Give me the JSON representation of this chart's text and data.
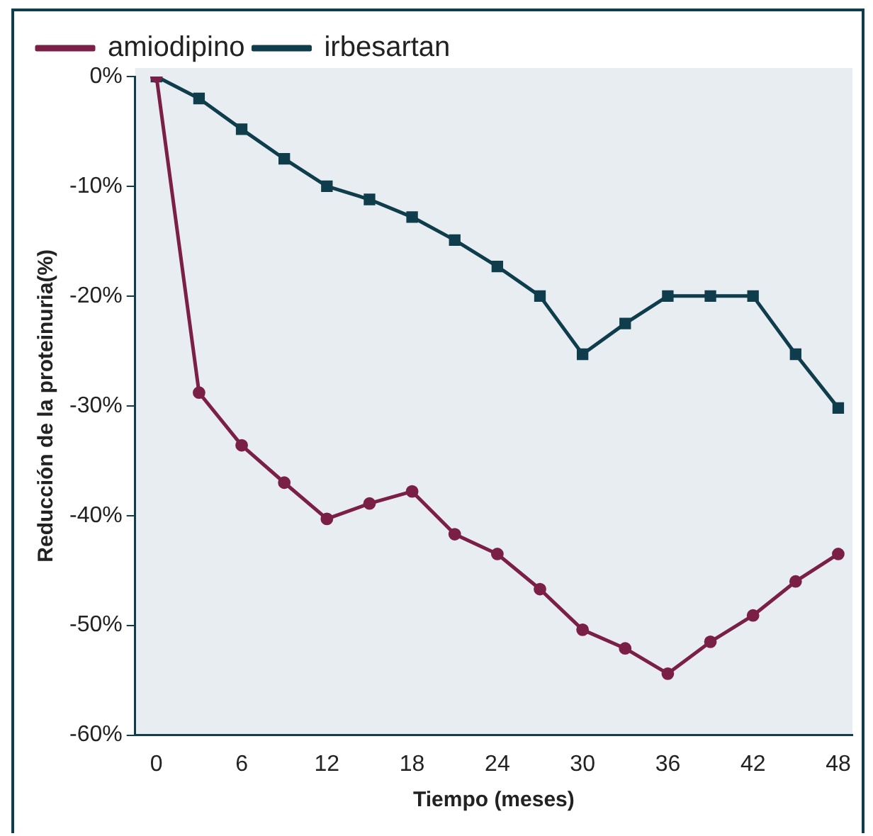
{
  "chart_data": {
    "type": "line",
    "xlabel": "Tiempo (meses)",
    "ylabel": "Reducción de la proteinuria(%)",
    "x": [
      0,
      3,
      6,
      9,
      12,
      15,
      18,
      21,
      24,
      27,
      30,
      33,
      36,
      39,
      42,
      45,
      48
    ],
    "series": [
      {
        "name": "amiodipino",
        "color": "#7a1f45",
        "values": [
          0,
          -28.8,
          -33.6,
          -37,
          -40.3,
          -38.9,
          -37.8,
          -41.7,
          -43.5,
          -46.7,
          -50.4,
          -52.1,
          -54.4,
          -51.5,
          -49.1,
          -46,
          -43.5
        ]
      },
      {
        "name": "irbesartan",
        "color": "#0f3d4c",
        "marker": "square",
        "values": [
          0,
          -2,
          -4.8,
          -7.5,
          -10,
          -11.2,
          -12.8,
          -14.9,
          -17.3,
          -20,
          -25.3,
          -22.5,
          -20,
          -20,
          -20,
          -25.3,
          -30.2
        ]
      }
    ],
    "marker": "circle",
    "line_style": "solid",
    "xlim": [
      -1.5,
      49
    ],
    "xticks": [
      0,
      6,
      12,
      18,
      24,
      30,
      36,
      42,
      48
    ],
    "ylim": [
      -60,
      0
    ],
    "yticks": [
      {
        "value": 0,
        "label": "0%"
      },
      {
        "value": -10,
        "label": "-10%"
      },
      {
        "value": -20,
        "label": "-20%"
      },
      {
        "value": -30,
        "label": "-30%"
      },
      {
        "value": -40,
        "label": "-40%"
      },
      {
        "value": -50,
        "label": "-50%"
      },
      {
        "value": -60,
        "label": "-60%"
      }
    ],
    "grid": false,
    "legend": "top"
  }
}
